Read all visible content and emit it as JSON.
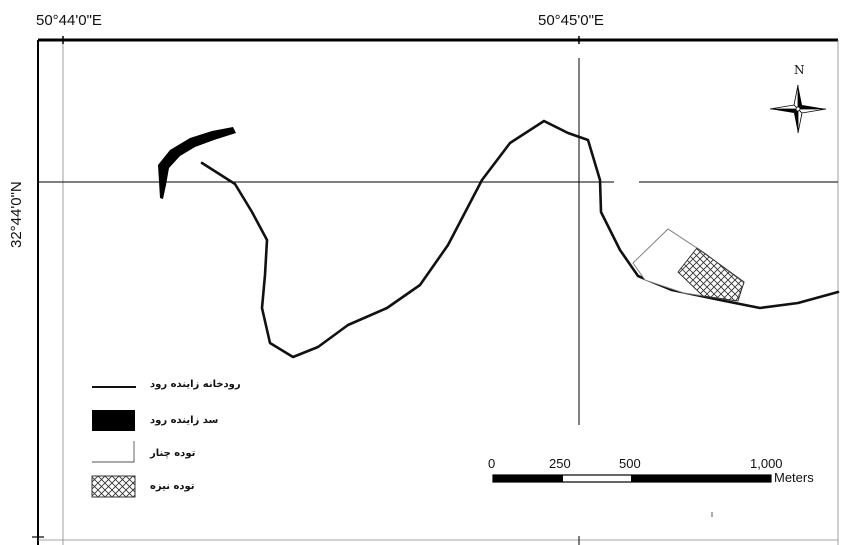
{
  "map": {
    "longitude_labels": {
      "west": "50°44'0\"E",
      "east": "50°45'0\"E"
    },
    "latitude_label": "32°44'0\"N",
    "north_arrow_label": "N",
    "colors": {
      "river": "#111111",
      "dam": "#000000",
      "frame": "#000000",
      "graticule": "#000000",
      "hatch": "#333333"
    }
  },
  "legend": {
    "items": [
      {
        "label": "رودخانه زاینده رود",
        "symbol": "line"
      },
      {
        "label": "سد زاینده رود",
        "symbol": "solid-fill"
      },
      {
        "label": "توده چنار",
        "symbol": "outline-box"
      },
      {
        "label": "توده نیزه",
        "symbol": "cross-hatch"
      }
    ]
  },
  "scale_bar": {
    "ticks": [
      "0",
      "250",
      "500",
      "1,000"
    ],
    "unit": "Meters"
  }
}
